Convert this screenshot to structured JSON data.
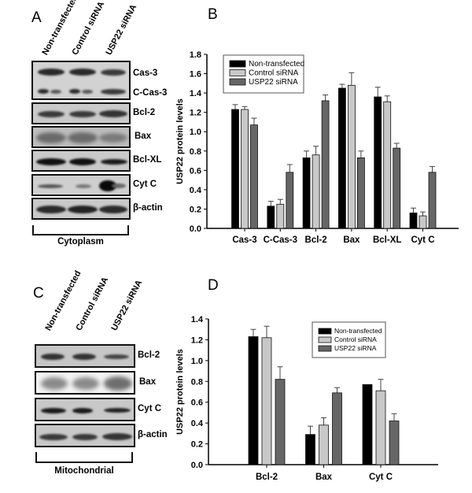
{
  "panels": {
    "A": {
      "letter": "A",
      "lanes": [
        "Non-transfected",
        "Control siRNA",
        "USP22 siRNA"
      ],
      "blots": [
        {
          "label": "Cas-3",
          "label2": "C-Cas-3"
        },
        {
          "label": "Bcl-2"
        },
        {
          "label": "Bax"
        },
        {
          "label": "Bcl-XL"
        },
        {
          "label": "Cyt C"
        },
        {
          "label": "β-actin"
        }
      ],
      "fraction": "Cytoplasm"
    },
    "B": {
      "letter": "B"
    },
    "C": {
      "letter": "C",
      "lanes": [
        "Non-transfected",
        "Control siRNA",
        "USP22 siRNA"
      ],
      "blots": [
        {
          "label": "Bcl-2"
        },
        {
          "label": "Bax"
        },
        {
          "label": "Cyt C"
        },
        {
          "label": "β-actin"
        }
      ],
      "fraction": "Mitochondrial"
    },
    "D": {
      "letter": "D"
    }
  },
  "colors": {
    "non_transfected": "#000000",
    "control_sirna": "#c8c8c8",
    "usp22_sirna": "#666666"
  },
  "chart_data": [
    {
      "id": "B",
      "type": "bar",
      "title": "",
      "xlabel": "",
      "ylabel": "USP22 protein levels",
      "ylim": [
        0,
        1.8
      ],
      "yticks": [
        "0.0",
        "0.2",
        "0.4",
        "0.6",
        "0.8",
        "1.0",
        "1.2",
        "1.4",
        "1.6",
        "1.8"
      ],
      "grid": false,
      "legend_position": "upper-left",
      "categories": [
        "Cas-3",
        "C-Cas-3",
        "Bcl-2",
        "Bax",
        "Bcl-XL",
        "Cyt C"
      ],
      "series": [
        {
          "name": "Non-transfected",
          "values": [
            1.23,
            0.23,
            0.73,
            1.45,
            1.36,
            0.16
          ],
          "errors": [
            0.05,
            0.05,
            0.07,
            0.04,
            0.1,
            0.05
          ]
        },
        {
          "name": "Control siRNA",
          "values": [
            1.23,
            0.25,
            0.76,
            1.48,
            1.31,
            0.13
          ],
          "errors": [
            0.03,
            0.05,
            0.09,
            0.13,
            0.06,
            0.04
          ]
        },
        {
          "name": "USP22 siRNA",
          "values": [
            1.07,
            0.58,
            1.32,
            0.73,
            0.83,
            0.58
          ],
          "errors": [
            0.07,
            0.08,
            0.06,
            0.07,
            0.05,
            0.06
          ]
        }
      ]
    },
    {
      "id": "D",
      "type": "bar",
      "title": "",
      "xlabel": "",
      "ylabel": "USP22 protein levels",
      "ylim": [
        0,
        1.4
      ],
      "yticks": [
        "0.0",
        "0.2",
        "0.4",
        "0.6",
        "0.8",
        "1.0",
        "1.2",
        "1.4"
      ],
      "grid": false,
      "legend_position": "upper-right",
      "categories": [
        "Bcl-2",
        "Bax",
        "Cyt C"
      ],
      "series": [
        {
          "name": "Non-transfected",
          "values": [
            1.23,
            0.29,
            0.77
          ],
          "errors": [
            0.07,
            0.08,
            0.0
          ]
        },
        {
          "name": "Control siRNA",
          "values": [
            1.22,
            0.38,
            0.71
          ],
          "errors": [
            0.11,
            0.07,
            0.11
          ]
        },
        {
          "name": "USP22 siRNA",
          "values": [
            0.82,
            0.69,
            0.42
          ],
          "errors": [
            0.12,
            0.05,
            0.07
          ]
        }
      ]
    }
  ]
}
